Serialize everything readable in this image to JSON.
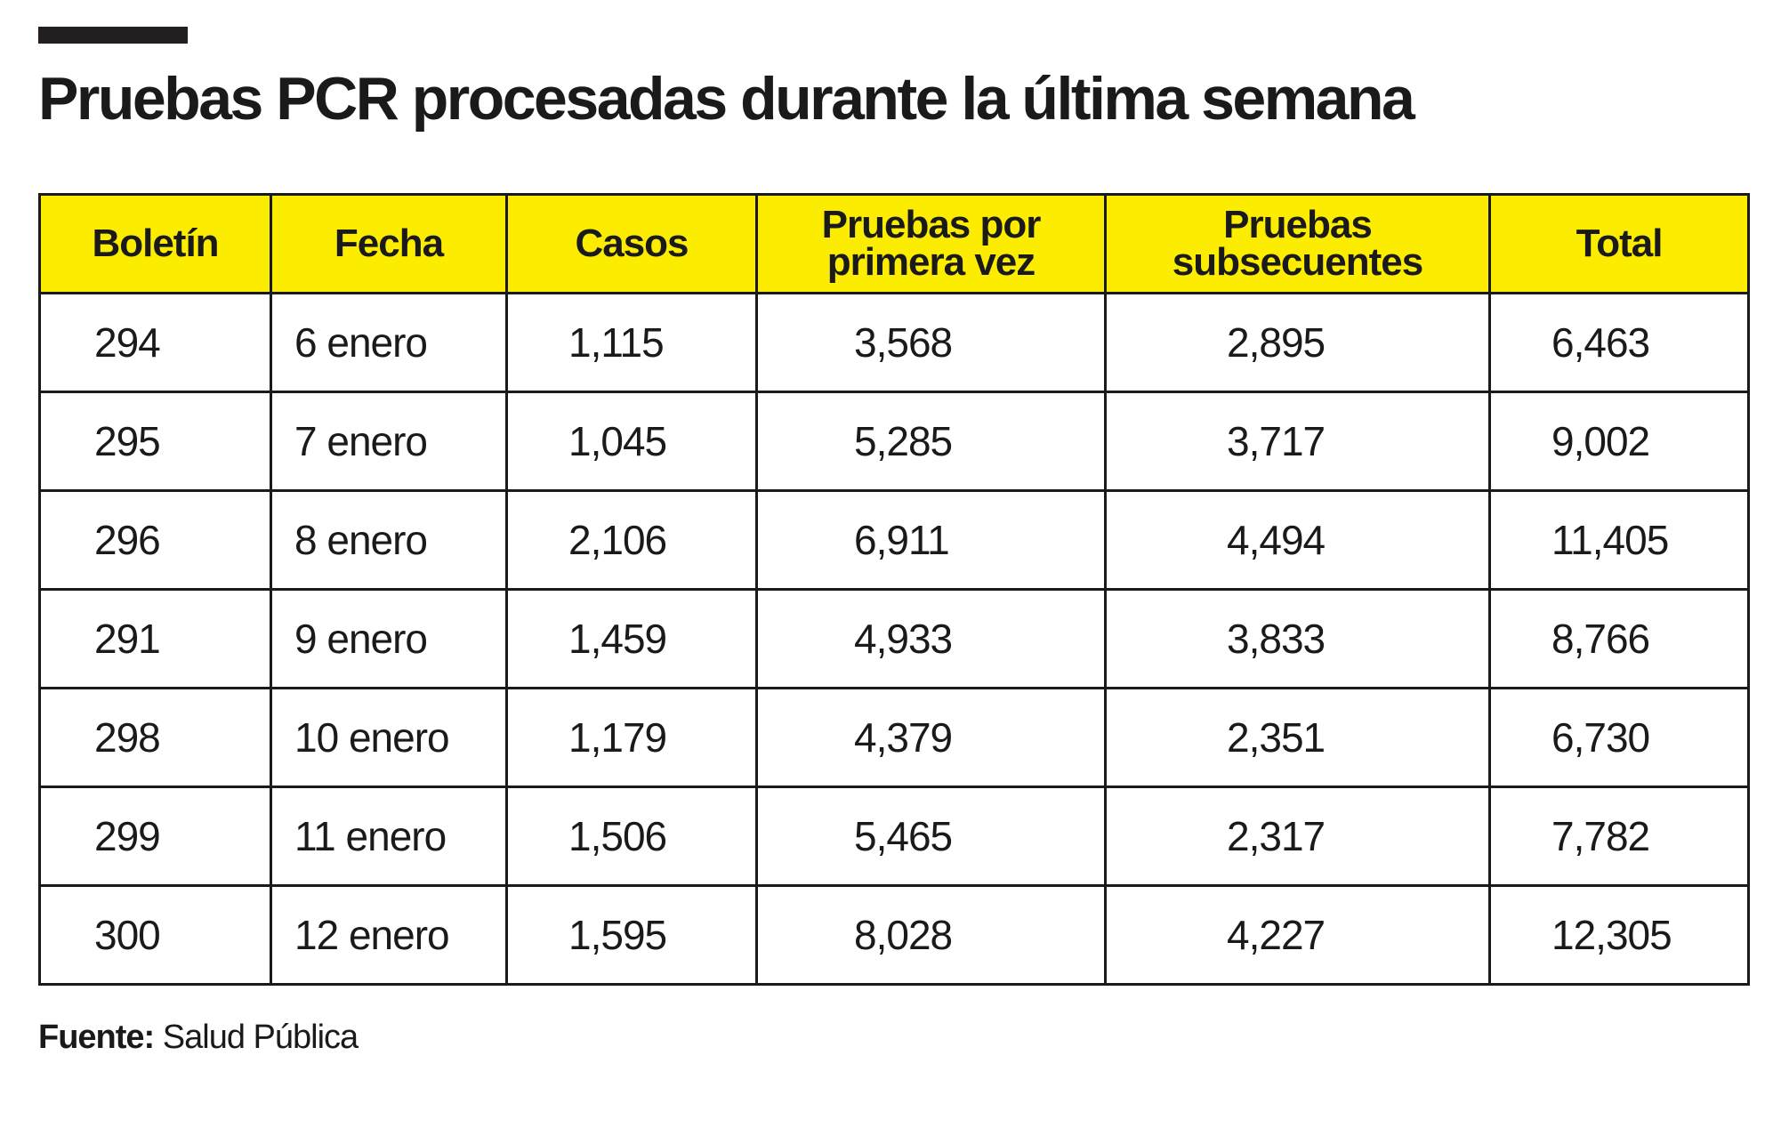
{
  "title": "Pruebas PCR procesadas durante la última semana",
  "table": {
    "headers": [
      "Boletín",
      "Fecha",
      "Casos",
      "Pruebas por primera vez",
      "Pruebas subsecuentes",
      "Total"
    ],
    "rows": [
      [
        "294",
        "6 enero",
        "1,115",
        "3,568",
        "2,895",
        "6,463"
      ],
      [
        "295",
        "7 enero",
        "1,045",
        "5,285",
        "3,717",
        "9,002"
      ],
      [
        "296",
        "8 enero",
        "2,106",
        "6,911",
        "4,494",
        "11,405"
      ],
      [
        "291",
        "9 enero",
        "1,459",
        "4,933",
        "3,833",
        "8,766"
      ],
      [
        "298",
        "10 enero",
        "1,179",
        "4,379",
        "2,351",
        "6,730"
      ],
      [
        "299",
        "11 enero",
        "1,506",
        "5,465",
        "2,317",
        "7,782"
      ],
      [
        "300",
        "12 enero",
        "1,595",
        "8,028",
        "4,227",
        "12,305"
      ]
    ]
  },
  "source": {
    "label": "Fuente:",
    "value": "Salud Pública"
  },
  "colors": {
    "header_bg": "#fcec00",
    "text": "#1a1a1a"
  }
}
